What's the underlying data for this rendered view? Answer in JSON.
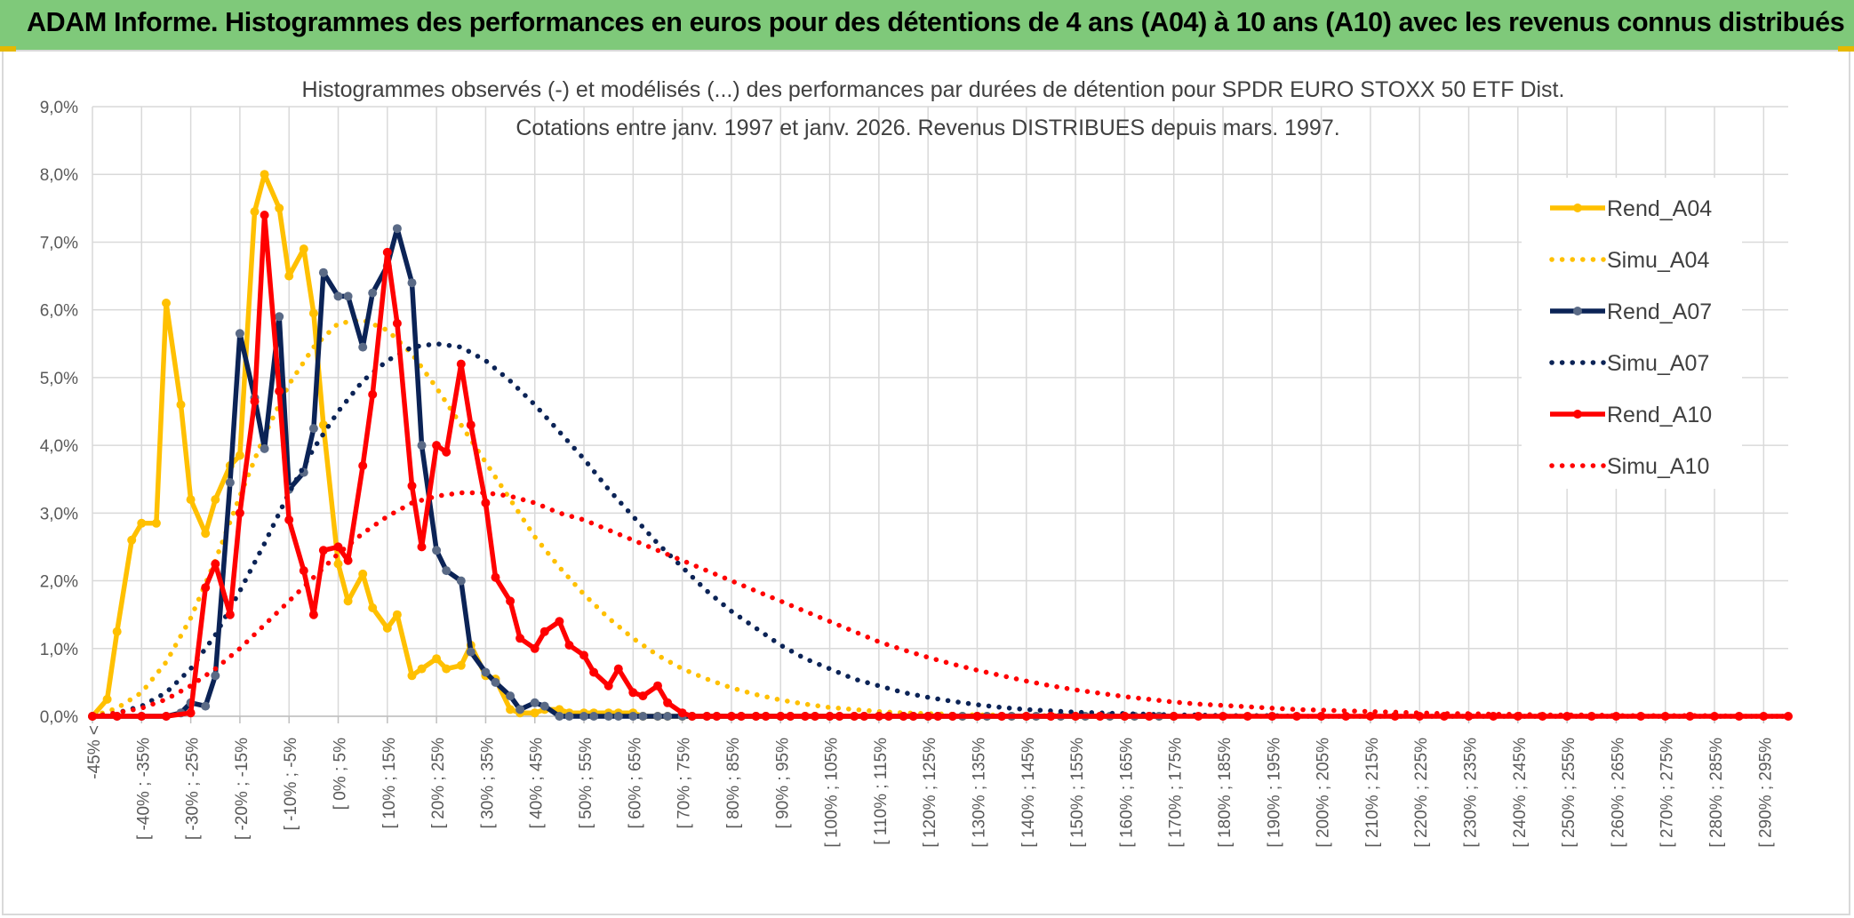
{
  "header": {
    "title": "ADAM Informe. Histogrammes des performances en euros pour des détentions de 4 ans (A04) à 10 ans (A10) avec les revenus connus distribués"
  },
  "chart_data": {
    "type": "line",
    "title": "Histogrammes observés (-) et modélisés (...) des performances par durées de détention pour SPDR EURO STOXX 50 ETF Dist.",
    "subtitle": "Cotations entre janv. 1997 et janv. 2026.  Revenus DISTRIBUES depuis mars. 1997.",
    "xlabel": "",
    "ylabel": "",
    "ylim": [
      0,
      9
    ],
    "y_ticks": [
      "0,0%",
      "1,0%",
      "2,0%",
      "3,0%",
      "4,0%",
      "5,0%",
      "6,0%",
      "7,0%",
      "8,0%",
      "9,0%"
    ],
    "grid": true,
    "legend_position": "right",
    "categories": [
      "-45% <",
      "[ -40% ; -35%",
      "[ -30% ; -25%",
      "[ -20% ; -15%",
      "[ -10% ; -5%",
      "[ 0% ; 5%",
      "[ 10% ; 15%",
      "[ 20% ; 25%",
      "[ 30% ; 35%",
      "[ 40% ; 45%",
      "[ 50% ; 55%",
      "[ 60% ; 65%",
      "[ 70% ; 75%",
      "[ 80% ; 85%",
      "[ 90% ; 95%",
      "[ 100% ; 105%",
      "[ 110% ; 115%",
      "[ 120% ; 125%",
      "[ 130% ; 135%",
      "[ 140% ; 145%",
      "[ 150% ; 155%",
      "[ 160% ; 165%",
      "[ 170% ; 175%",
      "[ 180% ; 185%",
      "[ 190% ; 195%",
      "[ 200% ; 205%",
      "[ 210% ; 215%",
      "[ 220% ; 225%",
      "[ 230% ; 235%",
      "[ 240% ; 245%",
      "[ 250% ; 255%",
      "[ 260% ; 265%",
      "[ 270% ; 275%",
      "[ 280% ; 285%",
      "[ 290% ; 295%"
    ],
    "x_range": [
      -45,
      300
    ],
    "series": [
      {
        "name": "Rend_A04",
        "style": "solid",
        "color": "#ffc000",
        "x": [
          -45,
          -42,
          -40,
          -37,
          -35,
          -32,
          -30,
          -27,
          -25,
          -22,
          -20,
          -17,
          -15,
          -12,
          -10,
          -7,
          -5,
          -2,
          0,
          2,
          5,
          7,
          10,
          12,
          15,
          17,
          20,
          22,
          25,
          27,
          30,
          32,
          35,
          37,
          40,
          42,
          45,
          47,
          50,
          52,
          55,
          57,
          60,
          62,
          65,
          67,
          70,
          72,
          75,
          77,
          80,
          82,
          85,
          87,
          90,
          92,
          95,
          97,
          100,
          102,
          105,
          107,
          110,
          112,
          115,
          117,
          120,
          122,
          125,
          127,
          130,
          132,
          135,
          137,
          140,
          142,
          145,
          147,
          150,
          152,
          155,
          157,
          160,
          162,
          165,
          167,
          170,
          172,
          175
        ],
        "y": [
          0,
          0.25,
          1.25,
          2.6,
          2.85,
          2.85,
          6.1,
          4.6,
          3.2,
          2.7,
          3.2,
          3.7,
          3.85,
          7.45,
          8.0,
          7.5,
          6.5,
          6.9,
          5.95,
          4.3,
          2.25,
          1.7,
          2.1,
          1.6,
          1.3,
          1.5,
          0.6,
          0.7,
          0.85,
          0.7,
          0.75,
          1.05,
          0.6,
          0.55,
          0.1,
          0.05,
          0.05,
          0.1,
          0.1,
          0.05,
          0.05,
          0.05,
          0.05,
          0.05,
          0.05,
          0,
          0,
          0,
          0,
          0,
          0,
          0,
          0,
          0,
          0,
          0,
          0,
          0,
          0,
          0,
          0,
          0,
          0,
          0,
          0,
          0,
          0,
          0,
          0,
          0,
          0,
          0,
          0,
          0,
          0,
          0,
          0,
          0,
          0,
          0,
          0,
          0,
          0,
          0,
          0,
          0,
          0,
          0,
          0
        ]
      },
      {
        "name": "Simu_A04",
        "style": "dotted",
        "color": "#ffc000",
        "x": [
          -45,
          -40,
          -35,
          -30,
          -25,
          -20,
          -15,
          -10,
          -5,
          0,
          5,
          10,
          15,
          20,
          25,
          30,
          35,
          40,
          45,
          50,
          55,
          60,
          65,
          70,
          75,
          80,
          85,
          90,
          95,
          100,
          105,
          110,
          115,
          120,
          125,
          130,
          135,
          140,
          145,
          150,
          155,
          160,
          165,
          170,
          175,
          180,
          185,
          190,
          195,
          200,
          210,
          220,
          230,
          240,
          250,
          260,
          270,
          280,
          290,
          300
        ],
        "y": [
          0,
          0.12,
          0.35,
          0.8,
          1.45,
          2.3,
          3.25,
          4.15,
          4.9,
          5.45,
          5.8,
          5.85,
          5.7,
          5.35,
          4.85,
          4.3,
          3.75,
          3.2,
          2.65,
          2.2,
          1.8,
          1.45,
          1.15,
          0.9,
          0.7,
          0.55,
          0.42,
          0.32,
          0.24,
          0.18,
          0.13,
          0.1,
          0.07,
          0.05,
          0.04,
          0.03,
          0.02,
          0.02,
          0.01,
          0.01,
          0.01,
          0,
          0,
          0,
          0,
          0,
          0,
          0,
          0,
          0,
          0,
          0,
          0,
          0,
          0,
          0,
          0,
          0,
          0,
          0
        ]
      },
      {
        "name": "Rend_A07",
        "style": "solid",
        "color": "#0b2356",
        "x": [
          -45,
          -40,
          -35,
          -30,
          -27,
          -25,
          -22,
          -20,
          -17,
          -15,
          -12,
          -10,
          -7,
          -5,
          -2,
          0,
          2,
          5,
          7,
          10,
          12,
          15,
          17,
          20,
          22,
          25,
          27,
          30,
          32,
          35,
          37,
          40,
          42,
          45,
          47,
          50,
          52,
          55,
          57,
          60,
          62,
          65,
          67,
          70,
          72,
          75,
          77,
          80,
          82,
          85,
          87,
          90,
          92,
          95,
          97,
          100,
          102,
          105,
          107,
          110,
          112,
          115,
          117,
          120,
          122,
          125,
          127,
          130,
          132,
          135,
          137,
          140,
          142,
          145,
          147,
          150,
          152,
          155,
          157,
          160,
          162,
          165,
          167,
          170,
          172,
          175
        ],
        "y": [
          0,
          0,
          0,
          0,
          0.05,
          0.2,
          0.15,
          0.6,
          3.45,
          5.65,
          4.7,
          3.95,
          5.9,
          3.35,
          3.6,
          4.25,
          6.55,
          6.2,
          6.2,
          5.45,
          6.25,
          6.65,
          7.2,
          6.4,
          4.0,
          2.45,
          2.15,
          2.0,
          0.95,
          0.65,
          0.5,
          0.3,
          0.1,
          0.2,
          0.15,
          0,
          0,
          0,
          0,
          0,
          0,
          0,
          0,
          0,
          0,
          0,
          0,
          0,
          0,
          0,
          0,
          0,
          0,
          0,
          0,
          0,
          0,
          0,
          0,
          0,
          0,
          0,
          0,
          0,
          0,
          0,
          0,
          0,
          0,
          0,
          0,
          0,
          0,
          0,
          0,
          0,
          0,
          0,
          0,
          0,
          0,
          0,
          0,
          0,
          0,
          0
        ]
      },
      {
        "name": "Simu_A07",
        "style": "dotted",
        "color": "#0b2356",
        "x": [
          -45,
          -40,
          -35,
          -30,
          -25,
          -20,
          -15,
          -10,
          -5,
          0,
          5,
          10,
          15,
          20,
          25,
          30,
          35,
          40,
          45,
          50,
          55,
          60,
          65,
          70,
          75,
          80,
          85,
          90,
          95,
          100,
          105,
          110,
          115,
          120,
          125,
          130,
          135,
          140,
          145,
          150,
          155,
          160,
          165,
          170,
          175,
          180,
          185,
          190,
          195,
          200,
          210,
          220,
          230,
          240,
          250,
          260,
          270,
          280,
          290,
          300
        ],
        "y": [
          0,
          0.05,
          0.15,
          0.35,
          0.7,
          1.2,
          1.85,
          2.55,
          3.3,
          3.95,
          4.5,
          4.95,
          5.25,
          5.45,
          5.5,
          5.45,
          5.25,
          4.95,
          4.6,
          4.2,
          3.8,
          3.35,
          2.95,
          2.55,
          2.2,
          1.85,
          1.55,
          1.3,
          1.05,
          0.85,
          0.7,
          0.55,
          0.45,
          0.35,
          0.28,
          0.22,
          0.17,
          0.13,
          0.1,
          0.08,
          0.06,
          0.05,
          0.04,
          0.03,
          0.02,
          0.02,
          0.01,
          0.01,
          0.01,
          0,
          0,
          0,
          0,
          0,
          0,
          0,
          0,
          0,
          0,
          0
        ]
      },
      {
        "name": "Rend_A10",
        "style": "solid",
        "color": "#ff0000",
        "x": [
          -45,
          -40,
          -35,
          -30,
          -25,
          -22,
          -20,
          -17,
          -15,
          -12,
          -10,
          -7,
          -5,
          -2,
          0,
          2,
          5,
          7,
          10,
          12,
          15,
          17,
          20,
          22,
          25,
          27,
          30,
          32,
          35,
          37,
          40,
          42,
          45,
          47,
          50,
          52,
          55,
          57,
          60,
          62,
          65,
          67,
          70,
          72,
          75,
          77,
          80,
          82,
          85,
          87,
          90,
          92,
          95,
          97,
          100,
          102,
          105,
          107,
          110,
          112,
          115,
          117,
          120,
          122,
          125,
          127,
          130,
          135,
          140,
          145,
          150,
          155,
          160,
          165,
          170,
          175,
          180,
          185,
          190,
          195,
          200,
          205,
          210,
          215,
          220,
          225,
          230,
          235,
          240,
          245,
          250,
          255,
          260,
          265,
          270,
          275,
          280,
          285,
          290,
          295,
          300
        ],
        "y": [
          0,
          0,
          0,
          0,
          0.05,
          1.9,
          2.25,
          1.5,
          3.0,
          4.65,
          7.4,
          4.8,
          2.9,
          2.15,
          1.5,
          2.45,
          2.5,
          2.3,
          3.7,
          4.75,
          6.85,
          5.8,
          3.4,
          2.5,
          4.0,
          3.9,
          5.2,
          4.3,
          3.15,
          2.05,
          1.7,
          1.15,
          1.0,
          1.25,
          1.4,
          1.05,
          0.9,
          0.65,
          0.45,
          0.7,
          0.35,
          0.3,
          0.45,
          0.2,
          0.05,
          0,
          0,
          0,
          0,
          0,
          0,
          0,
          0,
          0,
          0,
          0,
          0,
          0,
          0,
          0,
          0,
          0,
          0,
          0,
          0,
          0,
          0,
          0,
          0,
          0,
          0,
          0,
          0,
          0,
          0,
          0,
          0,
          0,
          0,
          0,
          0,
          0,
          0,
          0,
          0,
          0,
          0,
          0,
          0,
          0,
          0,
          0,
          0,
          0,
          0,
          0,
          0,
          0,
          0,
          0,
          0
        ]
      },
      {
        "name": "Simu_A10",
        "style": "dotted",
        "color": "#ff0000",
        "x": [
          -45,
          -40,
          -35,
          -30,
          -25,
          -20,
          -15,
          -10,
          -5,
          0,
          5,
          10,
          15,
          20,
          25,
          30,
          35,
          40,
          45,
          50,
          55,
          60,
          65,
          70,
          75,
          80,
          85,
          90,
          95,
          100,
          105,
          110,
          115,
          120,
          125,
          130,
          135,
          140,
          145,
          150,
          155,
          160,
          165,
          170,
          175,
          180,
          185,
          190,
          195,
          200,
          205,
          210,
          215,
          220,
          225,
          230,
          235,
          240,
          245,
          250,
          255,
          260,
          265,
          270,
          275,
          280,
          285,
          290,
          295,
          300
        ],
        "y": [
          0,
          0.05,
          0.12,
          0.25,
          0.45,
          0.7,
          1.0,
          1.35,
          1.7,
          2.05,
          2.4,
          2.7,
          2.95,
          3.15,
          3.25,
          3.3,
          3.3,
          3.25,
          3.15,
          3.0,
          2.9,
          2.75,
          2.6,
          2.45,
          2.3,
          2.15,
          2.0,
          1.85,
          1.7,
          1.55,
          1.4,
          1.25,
          1.1,
          0.98,
          0.87,
          0.77,
          0.68,
          0.6,
          0.52,
          0.45,
          0.39,
          0.34,
          0.29,
          0.25,
          0.21,
          0.18,
          0.16,
          0.14,
          0.12,
          0.1,
          0.09,
          0.08,
          0.07,
          0.06,
          0.05,
          0.04,
          0.04,
          0.03,
          0.03,
          0.02,
          0.02,
          0.02,
          0.01,
          0.01,
          0.01,
          0.01,
          0.01,
          0,
          0,
          0
        ]
      }
    ]
  }
}
